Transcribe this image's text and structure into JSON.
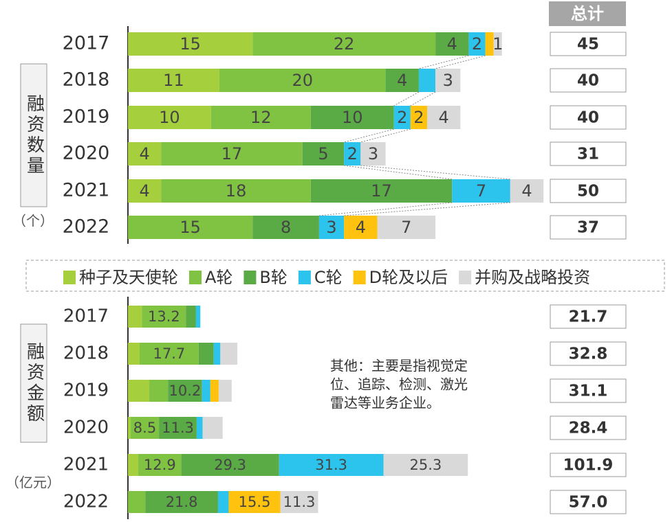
{
  "totals_header": "总计",
  "chart_data": [
    {
      "type": "bar",
      "orientation": "horizontal",
      "stacked": true,
      "ylabel": "融资数量",
      "unit": "（个）",
      "categories": [
        "2017",
        "2018",
        "2019",
        "2020",
        "2021",
        "2022"
      ],
      "xlim": [
        0,
        60
      ],
      "series": [
        {
          "name": "种子及天使轮",
          "color": "#a5cf3d",
          "values": [
            15,
            11,
            10,
            4,
            4,
            0
          ],
          "value_labels": [
            "15",
            "11",
            "10",
            "4",
            "4",
            null
          ]
        },
        {
          "name": "A轮",
          "color": "#80c342",
          "values": [
            22,
            20,
            12,
            17,
            18,
            15
          ],
          "value_labels": [
            "22",
            "20",
            "12",
            "17",
            "18",
            "15"
          ]
        },
        {
          "name": "B轮",
          "color": "#5aaa46",
          "values": [
            4,
            4,
            10,
            5,
            17,
            8
          ],
          "value_labels": [
            "4",
            "4",
            "10",
            "5",
            "17",
            "8"
          ]
        },
        {
          "name": "C轮",
          "color": "#2cc4ec",
          "values": [
            2,
            2,
            2,
            2,
            7,
            3
          ],
          "value_labels": [
            "2",
            null,
            "2",
            "2",
            "7",
            "3"
          ]
        },
        {
          "name": "D轮及以后",
          "color": "#ffc20e",
          "values": [
            1,
            0,
            2,
            0,
            0,
            4
          ],
          "value_labels": [
            null,
            null,
            "2",
            null,
            null,
            "4"
          ]
        },
        {
          "name": "并购及战略投资",
          "color": "#d9d9d9",
          "values": [
            1,
            3,
            4,
            3,
            4,
            7
          ],
          "value_labels": [
            "1",
            "3",
            "4",
            "3",
            "4",
            "7"
          ]
        }
      ],
      "totals": {
        "values": [
          45,
          40,
          40,
          31,
          50,
          37
        ],
        "value_labels": [
          "45",
          "40",
          "40",
          "31",
          "50",
          "37"
        ]
      }
    },
    {
      "type": "bar",
      "orientation": "horizontal",
      "stacked": true,
      "ylabel": "融资金额",
      "unit": "（亿元）",
      "categories": [
        "2017",
        "2018",
        "2019",
        "2020",
        "2021",
        "2022"
      ],
      "xlim": [
        0,
        120
      ],
      "series": [
        {
          "values": [
            4.2,
            3.5,
            6.4,
            0.8,
            3.1,
            0
          ],
          "value_labels": [
            null,
            null,
            null,
            null,
            null,
            null
          ]
        },
        {
          "values": [
            13.2,
            17.7,
            5.6,
            8.5,
            12.9,
            5.2
          ],
          "value_labels": [
            "13.2",
            "17.7",
            null,
            "8.5",
            "12.9",
            null
          ]
        },
        {
          "values": [
            3,
            4.5,
            10.2,
            11.3,
            29.3,
            21.8
          ],
          "value_labels": [
            null,
            null,
            "10.2",
            "11.3",
            "29.3",
            "21.8"
          ]
        },
        {
          "values": [
            1.3,
            2,
            2.5,
            1.8,
            31.3,
            3.2
          ],
          "value_labels": [
            null,
            null,
            null,
            null,
            "31.3",
            null
          ]
        },
        {
          "values": [
            0,
            0,
            2.5,
            0,
            0,
            15.5
          ],
          "value_labels": [
            null,
            null,
            null,
            null,
            null,
            "15.5"
          ]
        },
        {
          "values": [
            0,
            5.1,
            3.9,
            6,
            25.3,
            11.3
          ],
          "value_labels": [
            null,
            null,
            null,
            null,
            "25.3",
            "11.3"
          ]
        }
      ],
      "totals": {
        "values": [
          21.7,
          32.8,
          31.1,
          28.4,
          101.9,
          57
        ],
        "value_labels": [
          "21.7",
          "32.8",
          "31.1",
          "28.4",
          "101.9",
          "57.0"
        ]
      },
      "annotation": [
        "其他：主要是指视觉定",
        "位、追踪、检测、激光",
        "雷达等业务企业。"
      ]
    }
  ]
}
